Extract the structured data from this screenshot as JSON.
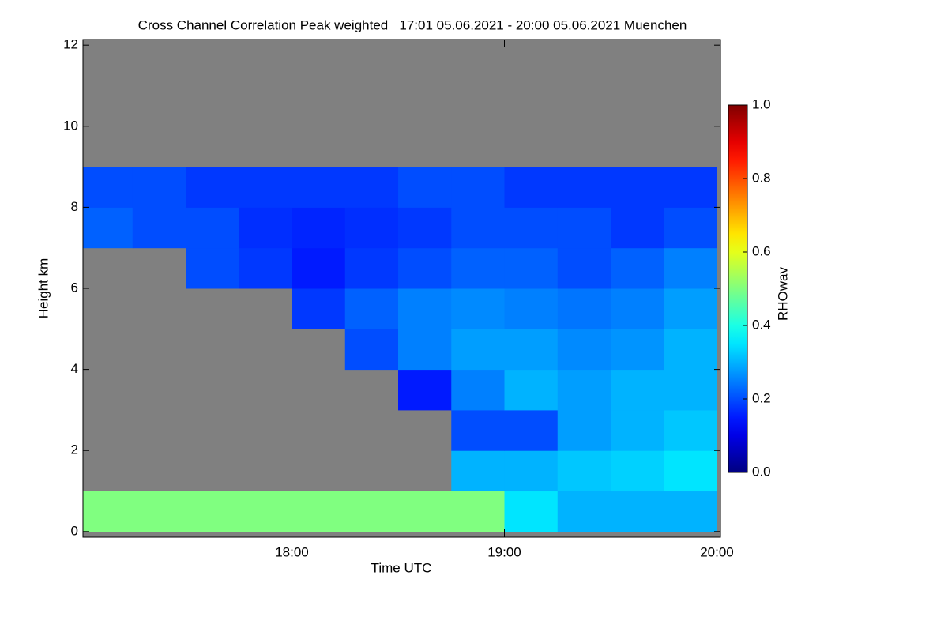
{
  "chart_data": {
    "type": "heatmap",
    "title": "Cross Channel Correlation Peak weighted   17:01 05.06.2021 - 20:00 05.06.2021 Muenchen",
    "x_label": "Time UTC",
    "y_label": "Height km",
    "colorbar_label": "RHOwav",
    "colormap": "jet",
    "missing_color": "#808080",
    "xlim": [
      17.0167,
      20.0167
    ],
    "xticks": [
      {
        "value": 18,
        "label": "18:00"
      },
      {
        "value": 19,
        "label": "19:00"
      },
      {
        "value": 20,
        "label": "20:00"
      }
    ],
    "ylim": [
      -0.14,
      12.14
    ],
    "yticks": [
      0,
      2,
      4,
      6,
      8,
      10,
      12
    ],
    "clim": [
      0,
      1
    ],
    "cticks": [
      {
        "value": 0,
        "label": "0.0"
      },
      {
        "value": 0.2,
        "label": "0.2"
      },
      {
        "value": 0.4,
        "label": "0.4"
      },
      {
        "value": 0.6,
        "label": "0.6"
      },
      {
        "value": 0.8,
        "label": "0.8"
      },
      {
        "value": 1,
        "label": "1.0"
      }
    ],
    "xbins": [
      17.0,
      17.25,
      17.5,
      17.75,
      18.0,
      18.25,
      18.5,
      18.75,
      19.0,
      19.25,
      19.5,
      19.75,
      20.0
    ],
    "ybins": [
      0,
      1,
      2,
      3,
      4,
      5,
      6,
      7,
      8,
      9,
      10
    ],
    "z": [
      [
        0.5,
        0.5,
        0.5,
        0.5,
        0.5,
        0.5,
        0.5,
        0.5,
        0.35,
        0.3,
        0.3,
        0.3
      ],
      [
        null,
        null,
        null,
        null,
        null,
        null,
        null,
        0.3,
        0.3,
        0.32,
        0.33,
        0.35
      ],
      [
        null,
        null,
        null,
        null,
        null,
        null,
        null,
        0.2,
        0.2,
        0.28,
        0.3,
        0.32
      ],
      [
        null,
        null,
        null,
        null,
        null,
        null,
        0.15,
        0.25,
        0.3,
        0.28,
        0.3,
        0.3
      ],
      [
        null,
        null,
        null,
        null,
        null,
        0.2,
        0.25,
        0.28,
        0.28,
        0.26,
        0.27,
        0.3
      ],
      [
        null,
        null,
        null,
        null,
        0.18,
        0.22,
        0.25,
        0.26,
        0.25,
        0.24,
        0.25,
        0.28
      ],
      [
        null,
        null,
        0.2,
        0.18,
        0.15,
        0.18,
        0.2,
        0.22,
        0.22,
        0.2,
        0.22,
        0.25
      ],
      [
        0.22,
        0.2,
        0.2,
        0.17,
        0.16,
        0.17,
        0.18,
        0.2,
        0.2,
        0.2,
        0.18,
        0.2
      ],
      [
        0.2,
        0.2,
        0.18,
        0.18,
        0.18,
        0.18,
        0.2,
        0.2,
        0.18,
        0.18,
        0.18,
        0.18
      ],
      [
        null,
        null,
        null,
        null,
        null,
        null,
        null,
        null,
        null,
        null,
        null,
        null
      ]
    ]
  }
}
